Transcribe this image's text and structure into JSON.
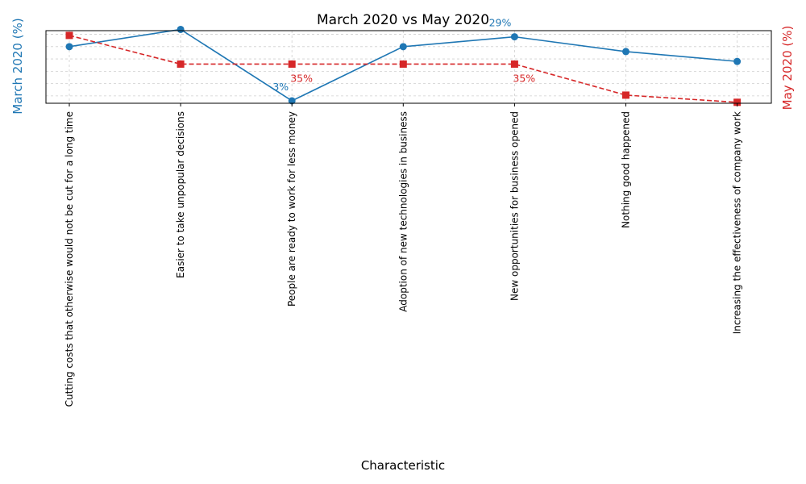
{
  "chart_data": {
    "type": "line",
    "title": "March 2020 vs May 2020",
    "xlabel": "Characteristic",
    "ylabel_left": "March 2020 (%)",
    "ylabel_right": "May 2020 (%)",
    "categories": [
      "Cutting costs that otherwise would not be cut for a long time",
      "Easier to take unpopular decisions",
      "People are ready to work for less money",
      "Adoption of new technologies in business",
      "New opportunities for business opened",
      "Nothing good happened",
      "Increasing the effectiveness of company work"
    ],
    "series": [
      {
        "name": "March 2020 (%)",
        "axis": "left",
        "color": "#1f77b4",
        "marker": "circle",
        "line_style": "solid",
        "values": [
          25,
          32,
          3,
          25,
          29,
          23,
          19
        ],
        "ylim": [
          2,
          31.5
        ]
      },
      {
        "name": "May 2020 (%)",
        "axis": "right",
        "color": "#d62728",
        "marker": "square",
        "line_style": "dashed",
        "values": [
          41,
          35,
          35,
          35,
          35,
          28.5,
          27
        ],
        "ylim": [
          26.8,
          42
        ]
      }
    ],
    "annotations": [
      {
        "text": "3%",
        "series": 0,
        "index": 2,
        "color": "#1f77b4",
        "position": "above-left"
      },
      {
        "text": "29%",
        "series": 0,
        "index": 4,
        "color": "#1f77b4",
        "position": "above-left"
      },
      {
        "text": "35%",
        "series": 1,
        "index": 2,
        "color": "#d62728",
        "position": "below-right"
      },
      {
        "text": "35%",
        "series": 1,
        "index": 4,
        "color": "#d62728",
        "position": "below-right"
      }
    ],
    "grid": true,
    "legend": "none"
  }
}
